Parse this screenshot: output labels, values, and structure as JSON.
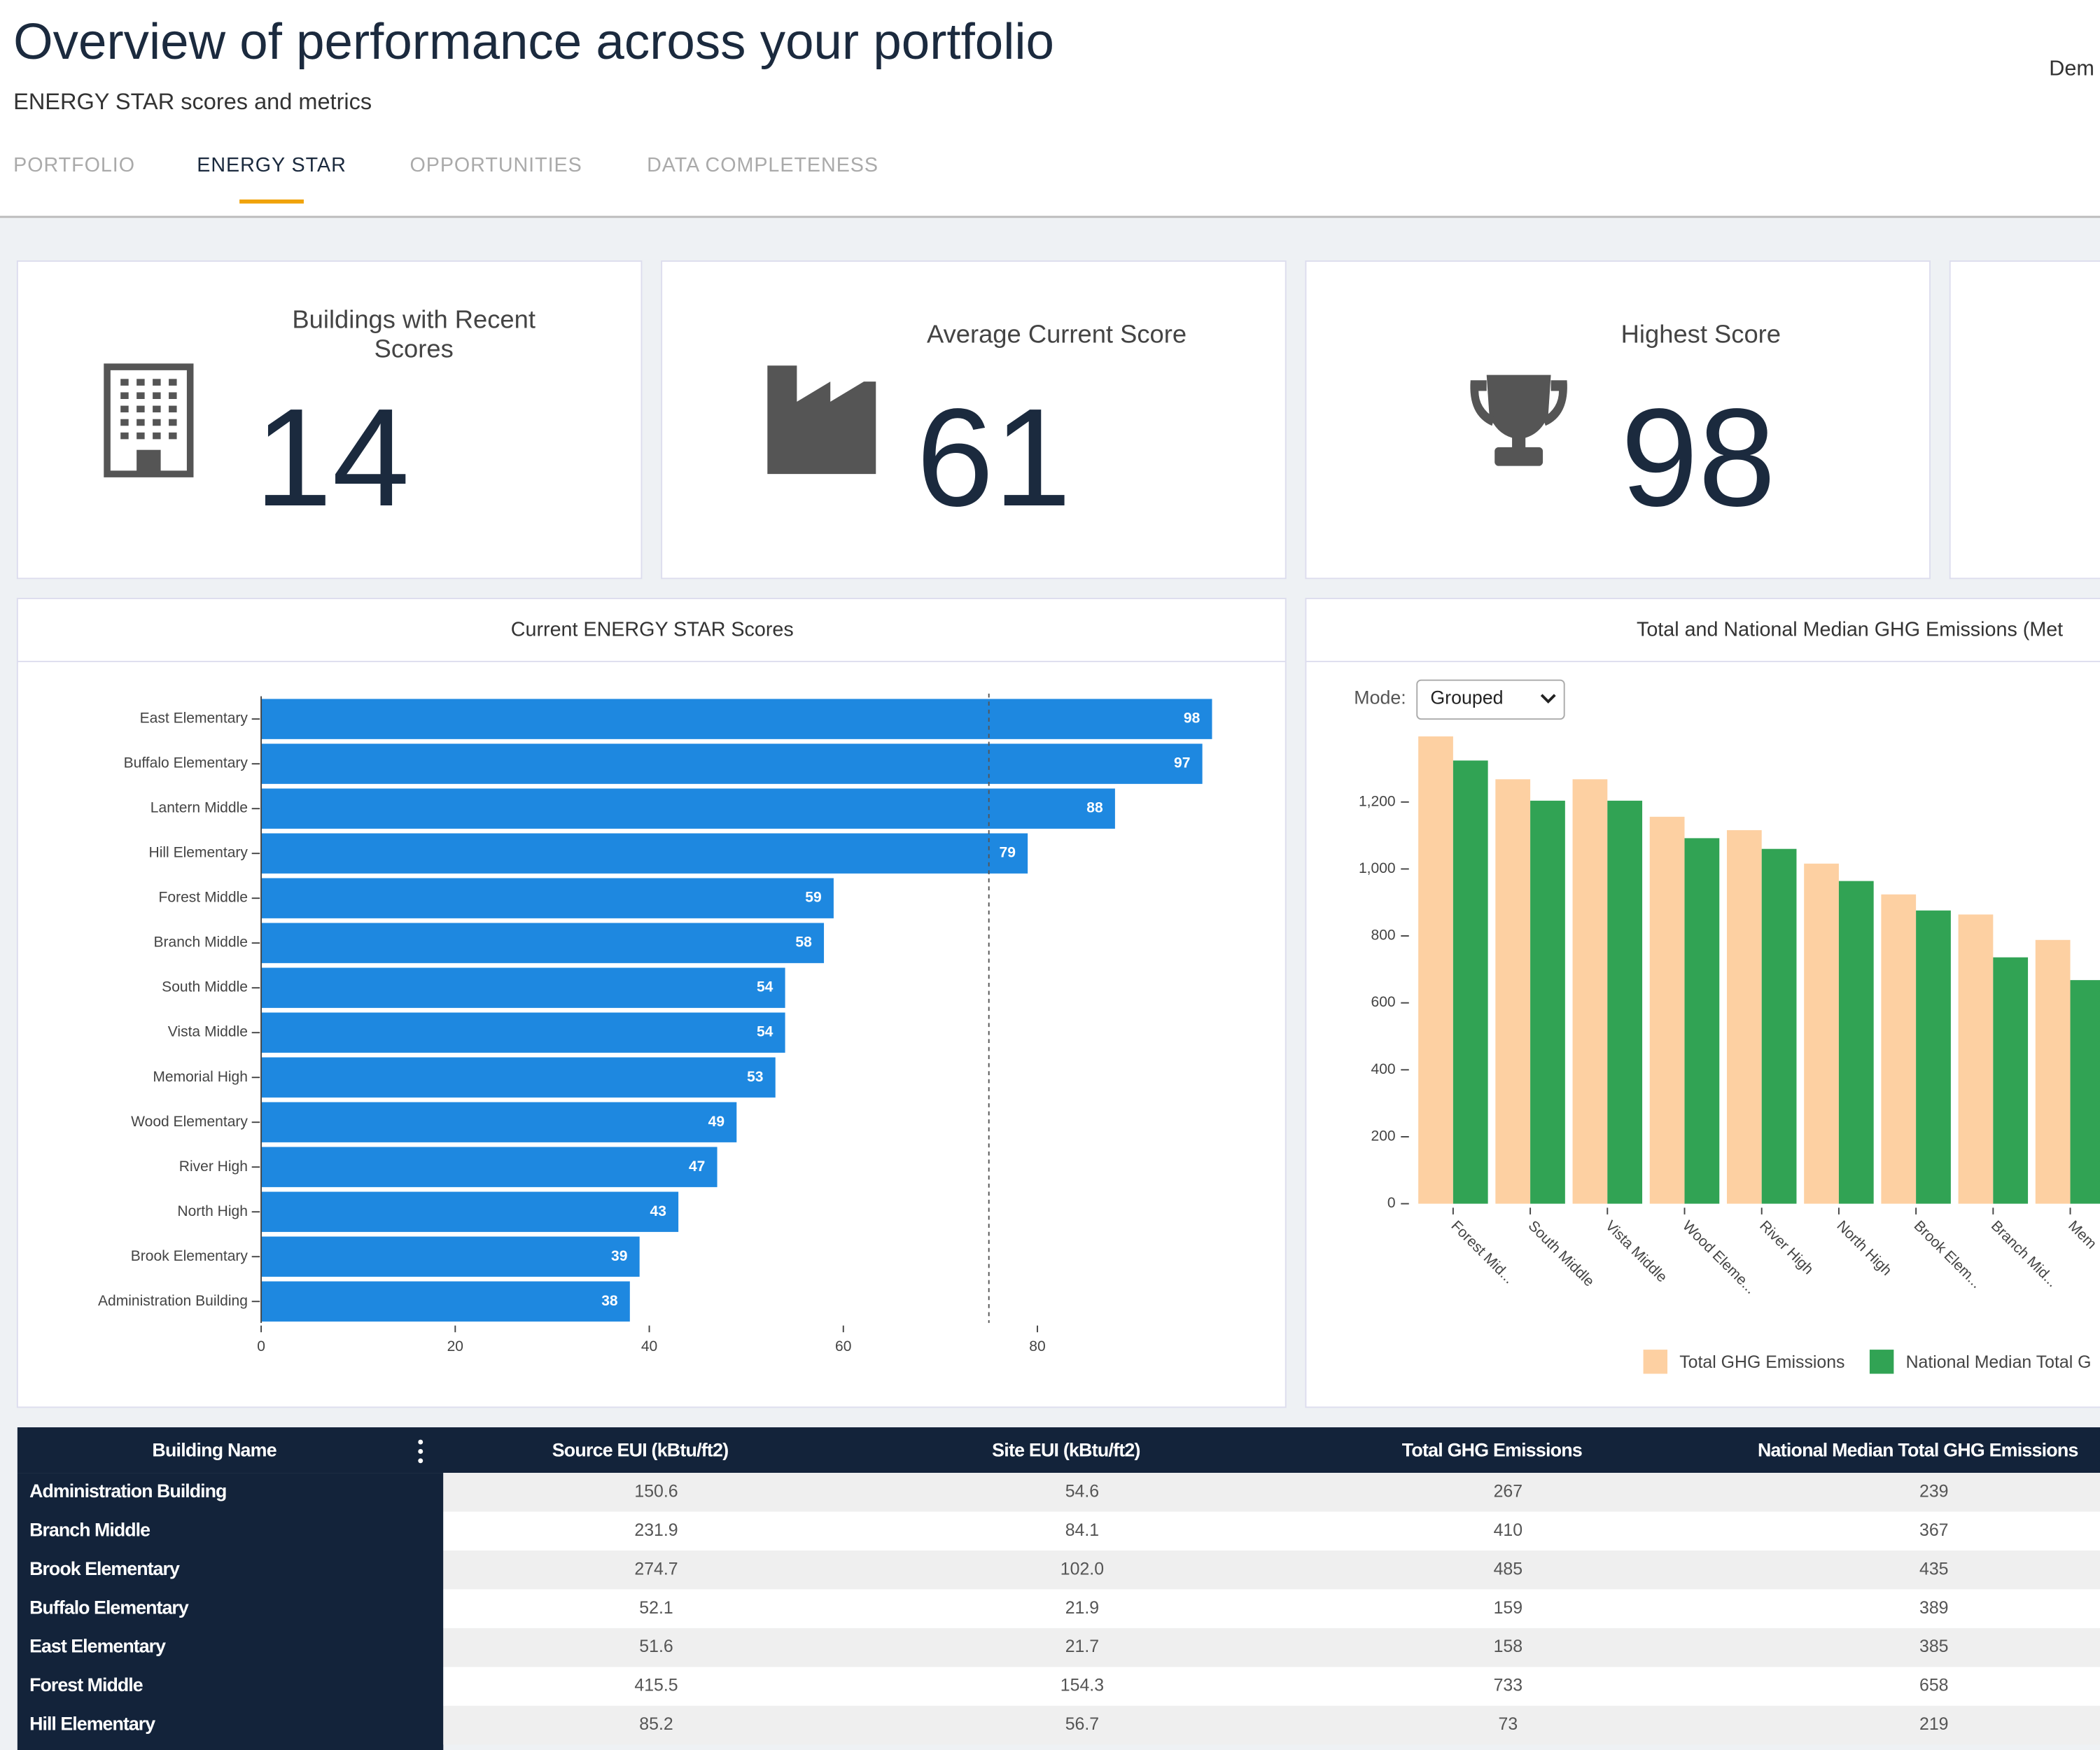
{
  "header": {
    "title": "Overview of performance across your portfolio",
    "subtitle": "ENERGY STAR scores and metrics",
    "user": "Dem"
  },
  "tabs": [
    "PORTFOLIO",
    "ENERGY STAR",
    "OPPORTUNITIES",
    "DATA COMPLETENESS"
  ],
  "active_tab": 1,
  "kpis": [
    {
      "label": "Buildings with Recent Scores",
      "value": 14
    },
    {
      "label": "Average Current Score",
      "value": 61
    },
    {
      "label": "Highest Score",
      "value": 98
    }
  ],
  "chart_data": [
    {
      "type": "barh",
      "title": "Current ENERGY STAR Scores",
      "categories": [
        "East Elementary",
        "Buffalo Elementary",
        "Lantern Middle",
        "Hill Elementary",
        "Forest Middle",
        "Branch Middle",
        "South Middle",
        "Vista Middle",
        "Memorial High",
        "Wood Elementary",
        "River High",
        "North High",
        "Brook Elementary",
        "Administration Building"
      ],
      "values": [
        98,
        97,
        88,
        79,
        59,
        58,
        54,
        54,
        53,
        49,
        47,
        43,
        39,
        38
      ],
      "color": "#1e88e0",
      "xlim": [
        0,
        98
      ],
      "xticks": [
        0,
        20,
        40,
        60,
        80
      ],
      "reference_line": 75
    },
    {
      "type": "grouped_bar",
      "title": "Total and National Median GHG Emissions (Met",
      "mode_label": "Mode:",
      "mode": "Grouped",
      "categories": [
        "Forest Mid...",
        "South Middle",
        "Vista Middle",
        "Wood Eleme...",
        "River High",
        "North High",
        "Brook Elem...",
        "Branch Mid...",
        "Mem"
      ],
      "series": [
        {
          "name": "Total GHG Emissions",
          "color": "#fdd0a2",
          "values": [
            1396,
            1268,
            1268,
            1156,
            1116,
            1016,
            924,
            864,
            788
          ]
        },
        {
          "name": "National Median Total G",
          "color": "#31a354",
          "values": [
            1324,
            1204,
            1204,
            1092,
            1060,
            964,
            876,
            736,
            668
          ]
        }
      ],
      "ylim": [
        0,
        1400
      ],
      "yticks": [
        0,
        200,
        400,
        600,
        800,
        {
          "value": 1000,
          "label": "1,000"
        },
        {
          "value": 1200,
          "label": "1,200"
        }
      ]
    }
  ],
  "table": {
    "columns": [
      "Building Name",
      "Source EUI (kBtu/ft2)",
      "Site EUI (kBtu/ft2)",
      "Total GHG Emissions",
      "National Median Total GHG Emissions"
    ],
    "rows": [
      [
        "Administration Building",
        "150.6",
        "54.6",
        "267",
        "239"
      ],
      [
        "Branch Middle",
        "231.9",
        "84.1",
        "410",
        "367"
      ],
      [
        "Brook Elementary",
        "274.7",
        "102.0",
        "485",
        "435"
      ],
      [
        "Buffalo Elementary",
        "52.1",
        "21.9",
        "159",
        "389"
      ],
      [
        "East Elementary",
        "51.6",
        "21.7",
        "158",
        "385"
      ],
      [
        "Forest Middle",
        "415.5",
        "154.3",
        "733",
        "658"
      ],
      [
        "Hill Elementary",
        "85.2",
        "56.7",
        "73",
        "219"
      ]
    ]
  }
}
